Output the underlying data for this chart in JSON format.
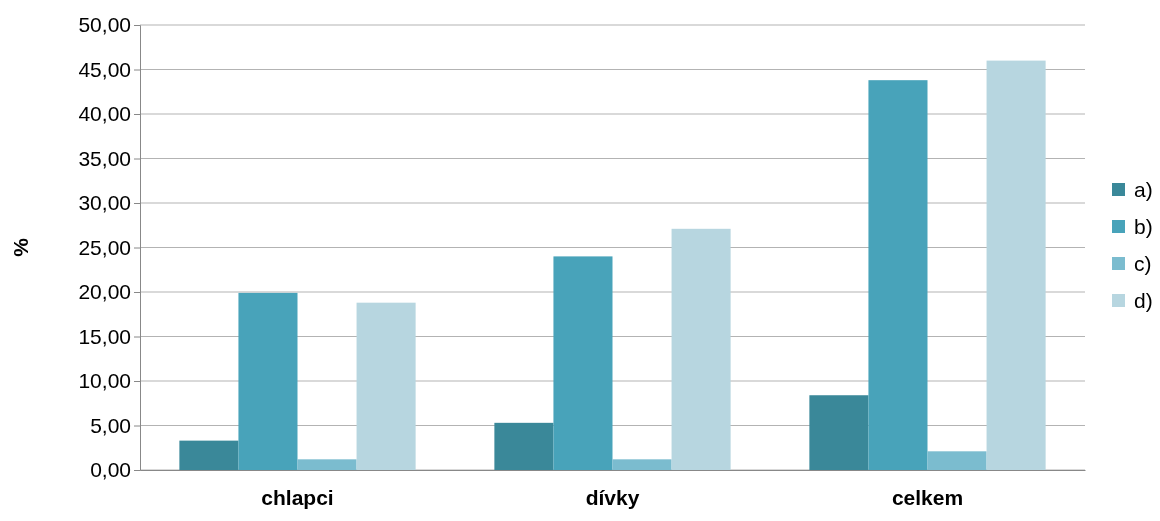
{
  "chart_data": {
    "type": "bar",
    "ylabel": "%",
    "categories": [
      "chlapci",
      "dívky",
      "celkem"
    ],
    "series": [
      {
        "name": "a)",
        "color": "#3a8899",
        "values": [
          3.3,
          5.3,
          8.4
        ]
      },
      {
        "name": "b)",
        "color": "#48a3ba",
        "values": [
          19.9,
          24.0,
          43.8
        ]
      },
      {
        "name": "c)",
        "color": "#7bbccf",
        "values": [
          1.2,
          1.2,
          2.1
        ]
      },
      {
        "name": "d)",
        "color": "#b7d6e0",
        "values": [
          18.8,
          27.1,
          46.0
        ]
      }
    ],
    "ylim": [
      0,
      50
    ],
    "yticks": [
      {
        "value": 0,
        "label": "0,00"
      },
      {
        "value": 5,
        "label": "5,00"
      },
      {
        "value": 10,
        "label": "10,00"
      },
      {
        "value": 15,
        "label": "15,00"
      },
      {
        "value": 20,
        "label": "20,00"
      },
      {
        "value": 25,
        "label": "25,00"
      },
      {
        "value": 30,
        "label": "30,00"
      },
      {
        "value": 35,
        "label": "35,00"
      },
      {
        "value": 40,
        "label": "40,00"
      },
      {
        "value": 45,
        "label": "45,00"
      },
      {
        "value": 50,
        "label": "50,00"
      }
    ],
    "grid": "y",
    "legend": "right"
  }
}
